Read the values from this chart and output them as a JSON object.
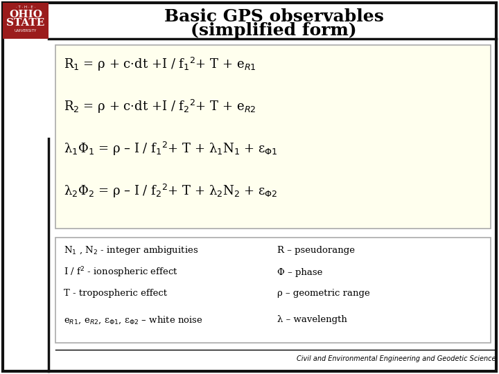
{
  "title_line1": "Basic GPS observables",
  "title_line2": "(simplified form)",
  "white_bg": "#ffffff",
  "eq_box_color": "#ffffee",
  "eq_box_edge": "#aaaaaa",
  "notes_box_edge": "#aaaaaa",
  "title_fontsize": 18,
  "eq_fontsize": 13,
  "note_fontsize": 9.5,
  "footer_text": "Civil and Environmental Engineering and Geodetic Science",
  "ohio_state_red": "#9b1c1c",
  "equations": [
    "R$_{1}$ = ρ + c·dt +I / f$_{1}$$^{2}$+ T + e$_{R1}$",
    "R$_{2}$ = ρ + c·dt +I / f$_{2}$$^{2}$+ T + e$_{R2}$",
    "λ$_{1}$Φ$_{1}$ = ρ – I / f$_{1}$$^{2}$+ T + λ$_{1}$N$_{1}$ + ε$_{Φ1}$",
    "λ$_{2}$Φ$_{2}$ = ρ – I / f$_{2}$$^{2}$+ T + λ$_{2}$N$_{2}$ + ε$_{Φ2}$"
  ],
  "notes_left": [
    "N$_{1}$ , N$_{2}$ - integer ambiguities",
    "I / f$^{2}$ - ionospheric effect",
    "T - tropospheric effect",
    "e$_{R1}$, e$_{R2}$, ε$_{Φ1}$, ε$_{Φ2}$ – white noise"
  ],
  "notes_right": [
    "R – pseudorange",
    "Φ – phase",
    "ρ – geometric range",
    "λ – wavelength"
  ]
}
